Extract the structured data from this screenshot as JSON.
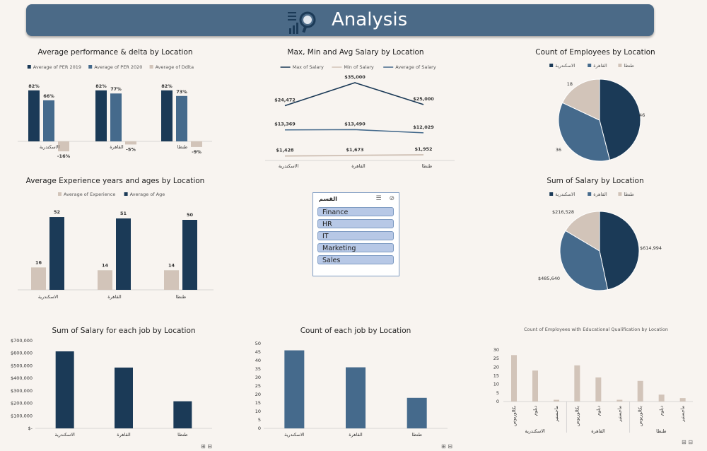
{
  "header": {
    "title": "Analysis"
  },
  "colors": {
    "dark": "#1b3a57",
    "mid": "#456a8c",
    "light": "#d2c4b9",
    "axis": "#cccccc"
  },
  "slicer": {
    "title": "القسم",
    "items": [
      "Finance",
      "HR",
      "IT",
      "Marketing",
      "Sales"
    ]
  },
  "chart_data": [
    {
      "id": "perf",
      "type": "bar",
      "title": "Average performance & delta by Location",
      "categories": [
        "الاسكندرية",
        "القاهرة",
        "طنطا"
      ],
      "series": [
        {
          "name": "Average of PER 2019",
          "values": [
            82,
            82,
            82
          ],
          "labels": [
            "82%",
            "82%",
            "82%"
          ]
        },
        {
          "name": "Average of PER 2020",
          "values": [
            66,
            77,
            73
          ],
          "labels": [
            "66%",
            "77%",
            "73%"
          ]
        },
        {
          "name": "Average of Ddlta",
          "values": [
            -16,
            -5,
            -9
          ],
          "labels": [
            "-16%",
            "-5%",
            "-9%"
          ]
        }
      ],
      "legend": "top"
    },
    {
      "id": "salary_line",
      "type": "line",
      "title": "Max, Min and Avg Salary by Location",
      "categories": [
        "الاسكندرية",
        "القاهرة",
        "طنطا"
      ],
      "series": [
        {
          "name": "Max of Salary",
          "values": [
            24472,
            35000,
            25000
          ],
          "labels": [
            "$24,472",
            "$35,000",
            "$25,000"
          ]
        },
        {
          "name": "Min of Salary",
          "values": [
            1428,
            1673,
            1952
          ],
          "labels": [
            "$1,428",
            "$1,673",
            "$1,952"
          ]
        },
        {
          "name": "Average of Salary",
          "values": [
            13369,
            13490,
            12029
          ],
          "labels": [
            "$13,369",
            "$13,490",
            "$12,029"
          ]
        }
      ],
      "legend": "top"
    },
    {
      "id": "emp_pie",
      "type": "pie",
      "title": "Count of Employees by Location",
      "categories": [
        "الاسكندرية",
        "القاهرة",
        "طنطا"
      ],
      "values": [
        46,
        36,
        18
      ],
      "labels": [
        "46",
        "36",
        "18"
      ],
      "legend": "top"
    },
    {
      "id": "exp",
      "type": "bar",
      "title": "Average Experience years and ages by Location",
      "categories": [
        "الاسكندرية",
        "القاهرة",
        "طنطا"
      ],
      "series": [
        {
          "name": "Average of Experience",
          "values": [
            16,
            14,
            14
          ],
          "labels": [
            "16",
            "14",
            "14"
          ]
        },
        {
          "name": "Average of Age",
          "values": [
            52,
            51,
            50
          ],
          "labels": [
            "52",
            "51",
            "50"
          ]
        }
      ],
      "legend": "top"
    },
    {
      "id": "sal_pie",
      "type": "pie",
      "title": "Sum of Salary by Location",
      "categories": [
        "الاسكندرية",
        "القاهرة",
        "طنطا"
      ],
      "values": [
        614994,
        485640,
        216528
      ],
      "labels": [
        "$614,994",
        "$485,640",
        "$216,528"
      ],
      "legend": "top"
    },
    {
      "id": "sal_job",
      "type": "bar",
      "title": "Sum of Salary for each job by Location",
      "categories": [
        "الاسكندرية",
        "القاهرة",
        "طنطا"
      ],
      "values": [
        614994,
        485640,
        216528
      ],
      "yticks": [
        "$-",
        "$100,000",
        "$200,000",
        "$300,000",
        "$400,000",
        "$500,000",
        "$600,000",
        "$700,000"
      ],
      "ylim": [
        0,
        700000
      ]
    },
    {
      "id": "cnt_job",
      "type": "bar",
      "title": "Count of each job by Location",
      "categories": [
        "الاسكندرية",
        "القاهرة",
        "طنطا"
      ],
      "values": [
        46,
        36,
        18
      ],
      "yticks": [
        "0",
        "5",
        "10",
        "15",
        "20",
        "25",
        "30",
        "35",
        "40",
        "45",
        "50"
      ],
      "ylim": [
        0,
        50
      ]
    },
    {
      "id": "edu",
      "type": "bar",
      "title": "Count of Employees with Educational Qualification by Location",
      "groups": [
        "الاسكندرية",
        "القاهرة",
        "طنطا"
      ],
      "subcategories": [
        "بكالوريوس",
        "دبلوم",
        "ماجستير"
      ],
      "values": [
        [
          27,
          18,
          1
        ],
        [
          21,
          14,
          1
        ],
        [
          12,
          4,
          2
        ]
      ],
      "yticks": [
        "0",
        "5",
        "10",
        "15",
        "20",
        "25",
        "30"
      ],
      "ylim": [
        0,
        30
      ]
    }
  ]
}
